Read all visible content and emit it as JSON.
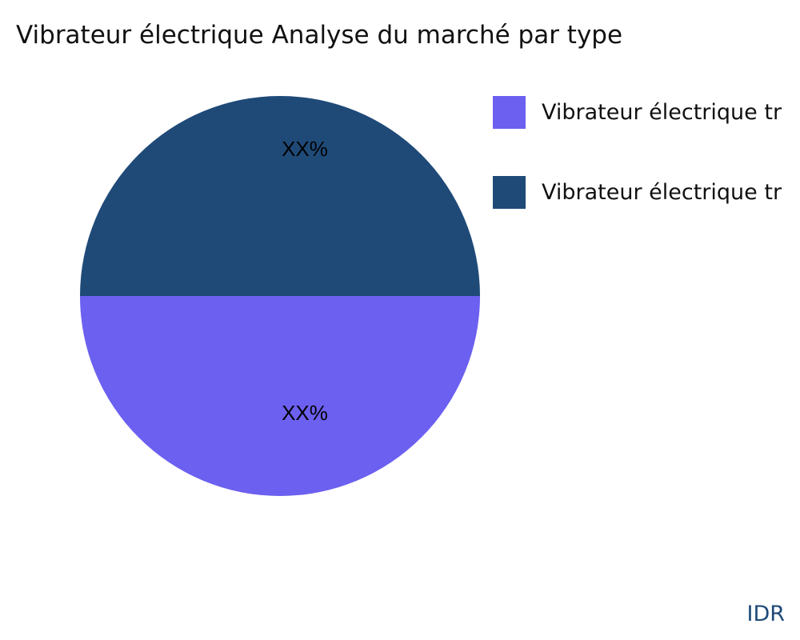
{
  "chart_data": {
    "type": "pie",
    "title": "Vibrateur électrique Analyse du marché par type",
    "slices": [
      {
        "label": "Vibrateur électrique tr",
        "value": 50,
        "data_label": "XX%",
        "color": "#6c60f0"
      },
      {
        "label": "Vibrateur électrique tr",
        "value": 50,
        "data_label": "XX%",
        "color": "#1f4a78"
      }
    ],
    "legend_placement": "right"
  },
  "brand": "IDR"
}
